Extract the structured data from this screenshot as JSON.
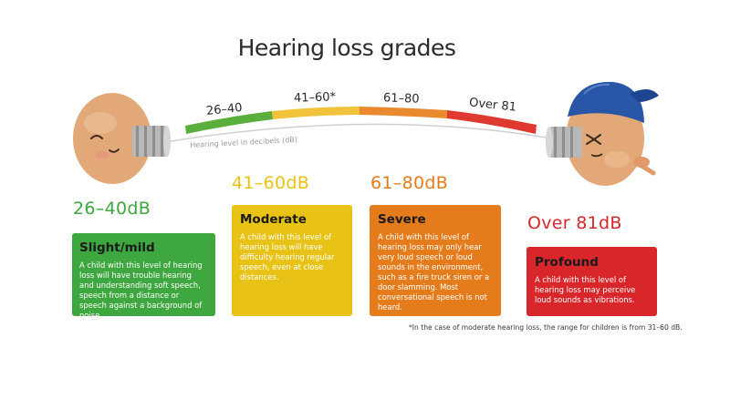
{
  "title": "Hearing loss grades",
  "scale": {
    "axis_label": "Hearing level in decibels (dB)",
    "segments": [
      {
        "label": "26–40",
        "color": "#5aae3c"
      },
      {
        "label": "41–60*",
        "color": "#f0c33a"
      },
      {
        "label": "61–80",
        "color": "#e98a2e"
      },
      {
        "label": "Over 81",
        "color": "#df3a2f"
      }
    ]
  },
  "grades": [
    {
      "range": "26–40dB",
      "name": "Slight/mild",
      "color": "#3ea73f",
      "description": "A child with this level of hearing loss will have trouble hearing and understanding soft speech, speech from a distance or speech against a background of noise."
    },
    {
      "range": "41–60dB",
      "name": "Moderate",
      "color": "#e8c316",
      "description": "A child with this level of hearing loss will have difficulty hearing regular speech, even at close distances."
    },
    {
      "range": "61–80dB",
      "name": "Severe",
      "color": "#e47c1c",
      "description": "A child with this level of hearing loss may only hear very loud speech or loud sounds in the environment, such as a fire truck siren or a door slamming. Most conversational speech is not heard."
    },
    {
      "range": "Over 81dB",
      "name": "Profound",
      "color": "#d8262a",
      "description": "A child with this level of hearing loss may perceive loud sounds as vibrations."
    }
  ],
  "range_colors": [
    "#3ea73f",
    "#e8c316",
    "#e47c1c",
    "#d8262a"
  ],
  "footnote": "*In the case of moderate hearing loss, the range for children is from 31–60 dB."
}
